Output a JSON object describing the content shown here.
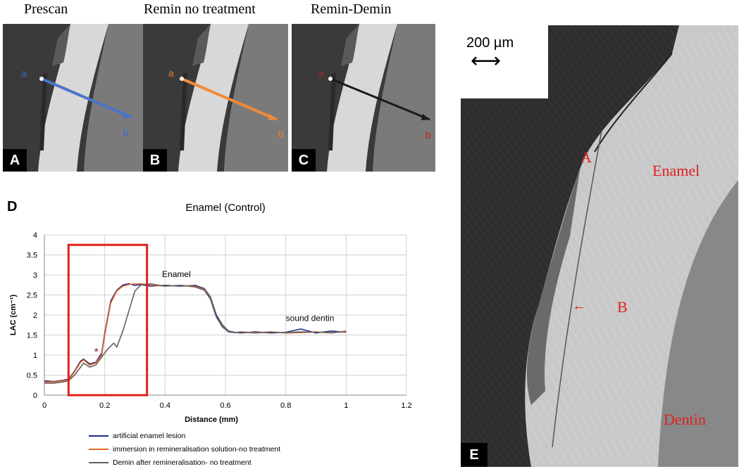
{
  "panels": {
    "A": {
      "title": "Prescan",
      "letter": "A",
      "point_start": "a",
      "point_end": "b",
      "line_color": "#4a74c9",
      "label_color": "#3a6bd0"
    },
    "B": {
      "title": "Remin no treatment",
      "letter": "B",
      "point_start": "a",
      "point_end": "b",
      "line_color": "#f08a3a",
      "label_color": "#f07a30"
    },
    "C": {
      "title": "Remin-Demin",
      "letter": "C",
      "point_start": "a",
      "point_end": "b",
      "line_color": "#1a1a1a",
      "label_color": "#c02020"
    }
  },
  "panel_d_letter": "D",
  "chart_data": {
    "type": "line",
    "title": "Enamel (Control)",
    "xlabel": "Distance (mm)",
    "ylabel": "LAC (cm⁻¹)",
    "xlim": [
      0,
      1.2
    ],
    "ylim": [
      0,
      4
    ],
    "x_ticks": [
      "0",
      "0.2",
      "0.4",
      "0.6",
      "0.8",
      "1",
      "1.2"
    ],
    "y_ticks": [
      "0",
      "0.5",
      "1",
      "1.5",
      "2",
      "2.5",
      "3",
      "3.5",
      "4"
    ],
    "grid": true,
    "highlight_box": {
      "x": [
        0.08,
        0.34
      ],
      "y": [
        0,
        3.75
      ],
      "color": "#e0201c"
    },
    "annotations": [
      {
        "text": "Enamel",
        "x": 0.39,
        "y": 2.95
      },
      {
        "text": "sound dentin",
        "x": 0.8,
        "y": 1.85
      },
      {
        "text": "*",
        "x": 0.165,
        "y": 0.98,
        "color": "#8b1a1a"
      }
    ],
    "series": [
      {
        "name": "artificial enamel lesion",
        "color": "#1f2d86",
        "x": [
          0,
          0.03,
          0.06,
          0.08,
          0.1,
          0.12,
          0.13,
          0.15,
          0.17,
          0.19,
          0.2,
          0.22,
          0.24,
          0.26,
          0.28,
          0.3,
          0.32,
          0.35,
          0.4,
          0.45,
          0.5,
          0.53,
          0.55,
          0.57,
          0.59,
          0.61,
          0.63,
          0.65,
          0.7,
          0.75,
          0.8,
          0.85,
          0.9,
          0.95,
          1.0
        ],
        "y": [
          0.36,
          0.34,
          0.37,
          0.4,
          0.6,
          0.85,
          0.9,
          0.78,
          0.82,
          1.05,
          1.55,
          2.35,
          2.62,
          2.75,
          2.78,
          2.74,
          2.76,
          2.72,
          2.74,
          2.72,
          2.74,
          2.66,
          2.45,
          2.0,
          1.75,
          1.6,
          1.57,
          1.55,
          1.58,
          1.55,
          1.57,
          1.65,
          1.55,
          1.6,
          1.57
        ]
      },
      {
        "name": "immersion in remineralisation solution-no treatment",
        "color": "#e5652a",
        "x": [
          0,
          0.03,
          0.06,
          0.08,
          0.1,
          0.12,
          0.13,
          0.15,
          0.17,
          0.19,
          0.2,
          0.22,
          0.24,
          0.26,
          0.28,
          0.3,
          0.32,
          0.35,
          0.4,
          0.45,
          0.5,
          0.53,
          0.55,
          0.57,
          0.59,
          0.61,
          0.63,
          0.65,
          0.7,
          0.75,
          0.8,
          0.85,
          0.9,
          0.95,
          1.0
        ],
        "y": [
          0.33,
          0.33,
          0.36,
          0.38,
          0.58,
          0.82,
          0.88,
          0.75,
          0.8,
          1.0,
          1.5,
          2.3,
          2.6,
          2.72,
          2.76,
          2.78,
          2.78,
          2.75,
          2.72,
          2.74,
          2.72,
          2.64,
          2.42,
          1.95,
          1.72,
          1.58,
          1.56,
          1.58,
          1.56,
          1.58,
          1.55,
          1.56,
          1.58,
          1.55,
          1.6
        ]
      },
      {
        "name": "Demin after remineralisation- no treatment",
        "color": "#606060",
        "x": [
          0,
          0.03,
          0.06,
          0.08,
          0.1,
          0.12,
          0.13,
          0.15,
          0.17,
          0.19,
          0.21,
          0.23,
          0.24,
          0.26,
          0.28,
          0.3,
          0.32,
          0.35,
          0.4,
          0.45,
          0.5,
          0.53,
          0.55,
          0.57,
          0.59,
          0.61,
          0.63,
          0.65,
          0.7,
          0.75,
          0.8,
          0.85,
          0.9,
          0.95,
          1.0
        ],
        "y": [
          0.3,
          0.3,
          0.33,
          0.36,
          0.5,
          0.7,
          0.8,
          0.7,
          0.75,
          0.95,
          1.15,
          1.3,
          1.2,
          1.6,
          2.1,
          2.6,
          2.75,
          2.78,
          2.72,
          2.74,
          2.7,
          2.62,
          2.4,
          1.95,
          1.7,
          1.58,
          1.56,
          1.57,
          1.55,
          1.57,
          1.56,
          1.58,
          1.57,
          1.56,
          1.58
        ]
      }
    ]
  },
  "panel_e": {
    "letter": "E",
    "scale_label": "200 µm",
    "scale_arrow": "⟷",
    "label_a": "A",
    "label_b": "B",
    "label_enamel": "Enamel",
    "label_dentin": "Dentin",
    "arrow_b": "←"
  }
}
